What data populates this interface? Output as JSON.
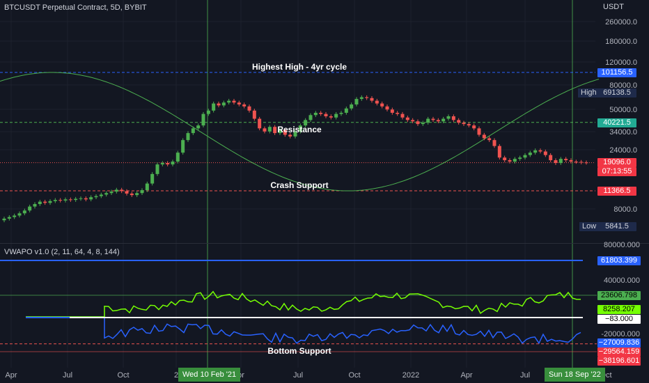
{
  "header": {
    "title": "BTCUSDT Perpetual Contract, 5D, BYBIT",
    "currency": "USDT"
  },
  "indicator": {
    "title": "VWAPO v1.0 (2, 11, 64, 4, 8, 144)"
  },
  "price_axis": {
    "ticks": [
      "260000.0",
      "180000.0",
      "120000.0",
      "80000.0",
      "50000.0",
      "34000.0",
      "24000.0",
      "8000.0"
    ]
  },
  "indicator_axis": {
    "ticks": [
      "80000.000",
      "40000.000",
      "-20000.000"
    ]
  },
  "time_axis": {
    "labels": [
      "Apr",
      "Jul",
      "Oct",
      "2",
      "pr",
      "Jul",
      "Oct",
      "2022",
      "Apr",
      "Jul",
      "Oct"
    ]
  },
  "price_tags": {
    "highest_high": "101156.5",
    "high_label": "High",
    "high_value": "69138.5",
    "resistance": "40221.5",
    "last_price": "19096.0",
    "countdown": "07:13:55",
    "crash_support": "11366.5",
    "low_label": "Low",
    "low_value": "5841.5"
  },
  "indicator_tags": {
    "upper_line": "61803.399",
    "green_level": "23606.798",
    "green_value": "8258.207",
    "white_value": "−83.000",
    "blue_value": "−27009.836",
    "support_1": "−29564.159",
    "support_2": "−38196.601"
  },
  "annotations": {
    "highest_high": "Highest High  - 4yr cycle",
    "resistance": "Resistance",
    "crash_support": "Crash Support",
    "bottom_support": "Bottom Support"
  },
  "cursors": {
    "left": "Wed 10 Feb '21",
    "right": "Sun 18 Sep '22"
  },
  "colors": {
    "background": "#131722",
    "up": "#26a69a",
    "up_candle": "#4caf50",
    "down": "#ef5350",
    "blue": "#2962ff",
    "green": "#4caf50",
    "cursor_green": "#388e3c",
    "red_tag": "#f23645",
    "green_tag": "#22ab94"
  },
  "chart_data": {
    "type": "candlestick",
    "series": [
      {
        "name": "BTCUSDT",
        "values": [
          6800,
          7000,
          7200,
          7500,
          7900,
          8500,
          8900,
          9300,
          9100,
          9400,
          9600,
          9500,
          9700,
          9600,
          9800,
          9900,
          9700,
          10100,
          10300,
          10600,
          10900,
          11200,
          11600,
          11300,
          10800,
          10500,
          10900,
          11500,
          13000,
          15500,
          18500,
          19000,
          18500,
          19500,
          23000,
          29000,
          33000,
          36000,
          38000,
          47000,
          50000,
          57000,
          55000,
          58000,
          60000,
          58000,
          56000,
          54000,
          50000,
          43000,
          36000,
          34000,
          37000,
          33000,
          35000,
          32000,
          31000,
          34000,
          38000,
          42000,
          46000,
          48000,
          47000,
          45000,
          44000,
          47000,
          48000,
          52000,
          56000,
          62000,
          64000,
          63000,
          60000,
          57000,
          54000,
          51000,
          48000,
          47000,
          44000,
          42000,
          41000,
          39000,
          40000,
          43000,
          42000,
          41000,
          43000,
          45000,
          42000,
          40000,
          39000,
          38000,
          36000,
          32000,
          30000,
          29000,
          26000,
          21000,
          20000,
          19500,
          20500,
          21000,
          22000,
          23000,
          24000,
          23500,
          22000,
          20000,
          19000,
          20500,
          20000,
          19500,
          19400,
          19200,
          19096
        ]
      }
    ],
    "indicator_series": [
      {
        "name": "VWAPO",
        "values": [
          -10000,
          -10000,
          -10000,
          -9000,
          -8000,
          -7000,
          -5000,
          -3000,
          -4000,
          -2000,
          -1000
        ]
      }
    ],
    "levels": [
      101156.5,
      40221.5,
      11366.5,
      61803.399,
      23606.798,
      -29564.159,
      -38196.601
    ]
  }
}
